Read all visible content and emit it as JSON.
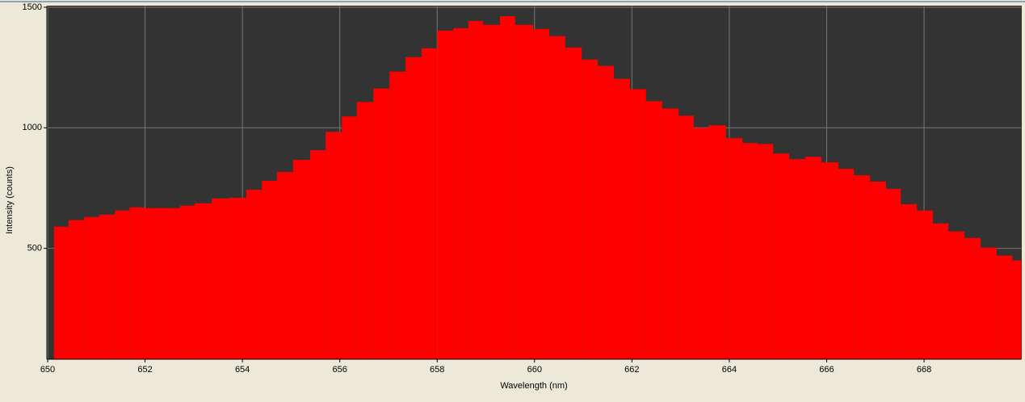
{
  "chart_data": {
    "type": "histogram",
    "x_label": "Wavelength (nm)",
    "y_label": "Intensity (counts)",
    "bins": [
      650.13,
      650.43,
      650.75,
      651.06,
      651.38,
      651.68,
      651.99,
      652.31,
      652.72,
      653.02,
      653.37,
      653.73,
      654.08,
      654.4,
      654.71,
      655.04,
      655.39,
      655.71,
      656.04,
      656.35,
      656.69,
      657.02,
      657.35,
      657.68,
      658.0,
      658.33,
      658.64,
      658.94,
      659.29,
      659.6,
      659.97,
      660.3,
      660.63,
      660.97,
      661.3,
      661.63,
      661.96,
      662.29,
      662.62,
      662.96,
      663.27,
      663.57,
      663.93,
      664.27,
      664.58,
      664.9,
      665.23,
      665.56,
      665.89,
      666.24,
      666.56,
      666.89,
      667.22,
      667.52,
      667.85,
      668.18,
      668.5,
      668.83,
      669.16,
      669.49,
      669.81,
      670.0
    ],
    "counts": [
      590,
      617,
      630,
      640,
      657,
      670,
      667,
      667,
      677,
      687,
      707,
      710,
      743,
      780,
      817,
      867,
      907,
      983,
      1047,
      1107,
      1163,
      1233,
      1293,
      1330,
      1403,
      1413,
      1443,
      1427,
      1463,
      1427,
      1410,
      1380,
      1333,
      1283,
      1257,
      1203,
      1160,
      1110,
      1080,
      1050,
      1000,
      1010,
      957,
      937,
      933,
      893,
      870,
      880,
      857,
      830,
      803,
      777,
      747,
      683,
      657,
      603,
      570,
      543,
      503,
      470,
      450
    ],
    "color": "#ff0000",
    "xlim": [
      650,
      670
    ],
    "ylim": [
      40,
      1505
    ],
    "xticks": [
      650,
      652,
      654,
      656,
      658,
      660,
      662,
      664,
      666,
      668
    ],
    "yticks": [
      500,
      1000,
      1500
    ],
    "grid": true
  }
}
